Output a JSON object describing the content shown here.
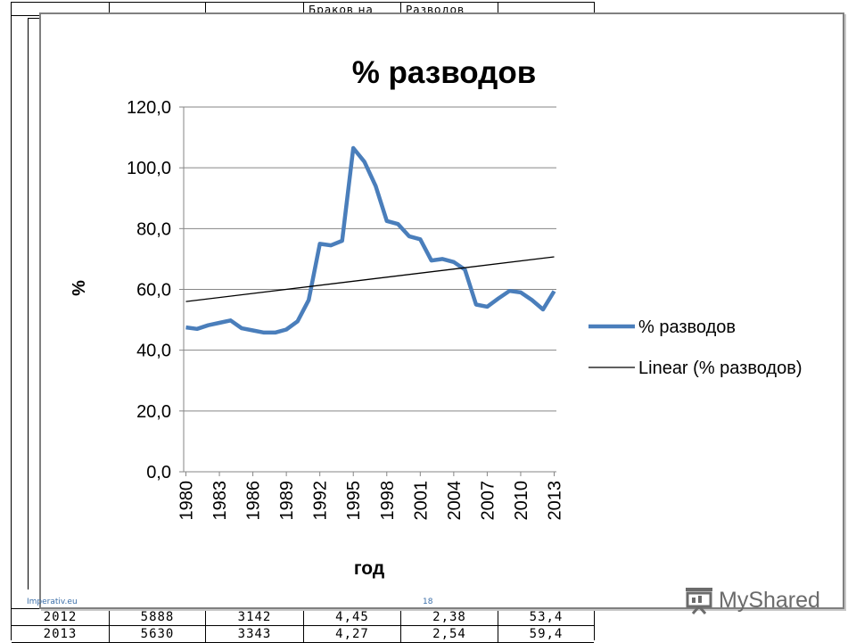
{
  "background_table": {
    "header_cells": [
      "Браков на",
      "Разводов"
    ],
    "rows": [
      [
        "2012",
        "5888",
        "3142",
        "4,45",
        "2,38",
        "53,4"
      ],
      [
        "2013",
        "5630",
        "3343",
        "4,27",
        "2,54",
        "59,4"
      ]
    ]
  },
  "footer": {
    "source": "Imperativ.eu",
    "slide_number": "18"
  },
  "watermark": {
    "text": "MyShared"
  },
  "chart_data": {
    "type": "line",
    "title": "% разводов",
    "xlabel": "год",
    "ylabel": "%",
    "ylim": [
      0,
      120
    ],
    "yticks": [
      "0,0",
      "20,0",
      "40,0",
      "60,0",
      "80,0",
      "100,0",
      "120,0"
    ],
    "xtick_labels": [
      "1980",
      "1983",
      "1986",
      "1989",
      "1992",
      "1995",
      "1998",
      "2001",
      "2004",
      "2007",
      "2010",
      "2013"
    ],
    "x": [
      1980,
      1981,
      1982,
      1983,
      1984,
      1985,
      1986,
      1987,
      1988,
      1989,
      1990,
      1991,
      1992,
      1993,
      1994,
      1995,
      1996,
      1997,
      1998,
      1999,
      2000,
      2001,
      2002,
      2003,
      2004,
      2005,
      2006,
      2007,
      2008,
      2009,
      2010,
      2011,
      2012,
      2013
    ],
    "series": [
      {
        "name": "% разводов",
        "color": "#4a7ebb",
        "values": [
          47.5,
          47.0,
          48.2,
          49.0,
          49.8,
          47.2,
          46.5,
          45.8,
          45.8,
          46.8,
          49.5,
          56.5,
          75.0,
          74.5,
          76.0,
          106.5,
          102.0,
          94.0,
          82.5,
          81.5,
          77.5,
          76.5,
          69.5,
          70.0,
          69.0,
          66.5,
          55.0,
          54.3,
          57.0,
          59.5,
          59.0,
          56.5,
          53.4,
          59.4
        ]
      },
      {
        "name": "Linear (% разводов)",
        "color": "#000000",
        "trend": [
          56.0,
          70.7
        ]
      }
    ],
    "grid": "horizontal",
    "legend_position": "right"
  }
}
